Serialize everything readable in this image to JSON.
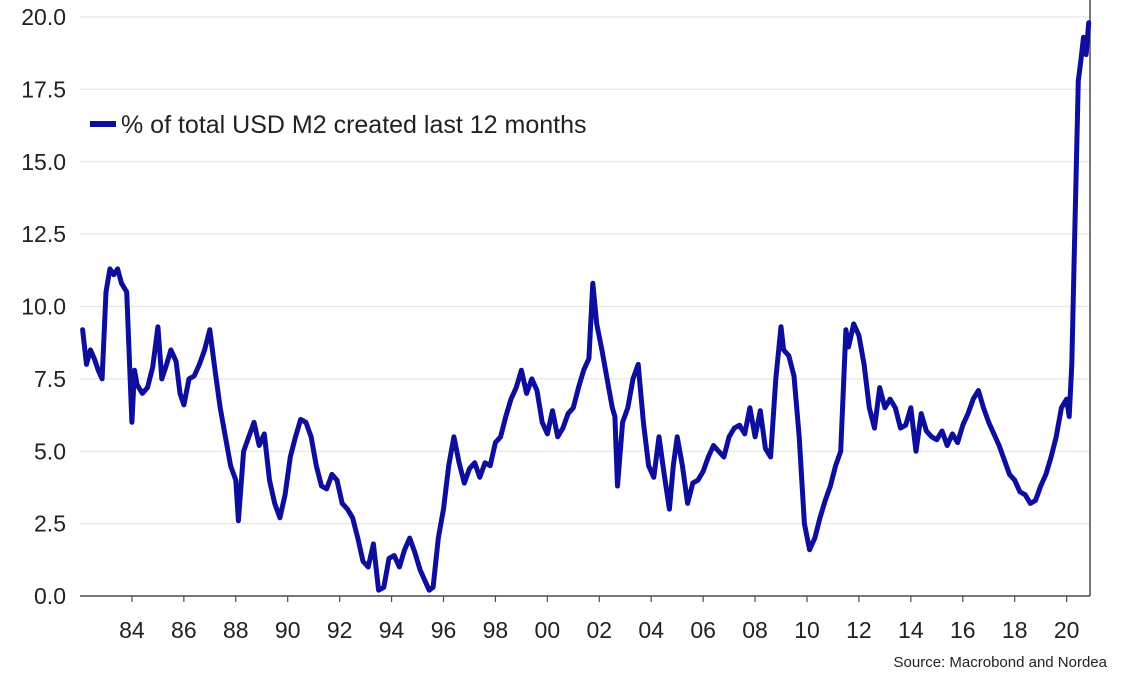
{
  "chart_data": {
    "type": "line",
    "title": "",
    "xlabel": "",
    "ylabel": "",
    "xlim": [
      1982.0,
      2020.9
    ],
    "ylim": [
      0,
      20
    ],
    "x_tick_values": [
      1984,
      1986,
      1988,
      1990,
      1992,
      1994,
      1996,
      1998,
      2000,
      2002,
      2004,
      2006,
      2008,
      2010,
      2012,
      2014,
      2016,
      2018,
      2020
    ],
    "x_tick_labels": [
      "84",
      "86",
      "88",
      "90",
      "92",
      "94",
      "96",
      "98",
      "00",
      "02",
      "04",
      "06",
      "08",
      "10",
      "12",
      "14",
      "16",
      "18",
      "20"
    ],
    "y_tick_values": [
      0,
      2.5,
      5,
      7.5,
      10,
      12.5,
      15,
      17.5,
      20
    ],
    "y_tick_labels": [
      "0.0",
      "2.5",
      "5.0",
      "7.5",
      "10.0",
      "12.5",
      "15.0",
      "17.5",
      "20.0"
    ],
    "grid": "horizontal",
    "legend_position": "top-left",
    "series": [
      {
        "name": "% of total USD M2 created last 12 months",
        "color": "#0d0d9e",
        "x": [
          1982.1,
          1982.25,
          1982.4,
          1982.55,
          1982.7,
          1982.85,
          1983.0,
          1983.15,
          1983.3,
          1983.45,
          1983.6,
          1983.8,
          1984.0,
          1984.1,
          1984.2,
          1984.4,
          1984.6,
          1984.8,
          1985.0,
          1985.15,
          1985.3,
          1985.5,
          1985.7,
          1985.85,
          1986.0,
          1986.2,
          1986.4,
          1986.6,
          1986.8,
          1987.0,
          1987.2,
          1987.4,
          1987.6,
          1987.8,
          1988.0,
          1988.1,
          1988.3,
          1988.5,
          1988.7,
          1988.9,
          1989.1,
          1989.3,
          1989.5,
          1989.7,
          1989.9,
          1990.1,
          1990.3,
          1990.5,
          1990.7,
          1990.9,
          1991.1,
          1991.3,
          1991.5,
          1991.7,
          1991.9,
          1992.1,
          1992.3,
          1992.5,
          1992.7,
          1992.9,
          1993.1,
          1993.3,
          1993.5,
          1993.7,
          1993.9,
          1994.1,
          1994.3,
          1994.5,
          1994.7,
          1994.9,
          1995.1,
          1995.3,
          1995.45,
          1995.6,
          1995.8,
          1996.0,
          1996.2,
          1996.4,
          1996.6,
          1996.8,
          1997.0,
          1997.2,
          1997.4,
          1997.6,
          1997.8,
          1998.0,
          1998.2,
          1998.4,
          1998.6,
          1998.8,
          1999.0,
          1999.2,
          1999.4,
          1999.6,
          1999.8,
          2000.0,
          2000.2,
          2000.4,
          2000.6,
          2000.8,
          2001.0,
          2001.2,
          2001.4,
          2001.6,
          2001.75,
          2001.9,
          2002.1,
          2002.3,
          2002.5,
          2002.6,
          2002.7,
          2002.9,
          2003.1,
          2003.3,
          2003.5,
          2003.7,
          2003.9,
          2004.1,
          2004.3,
          2004.5,
          2004.7,
          2004.85,
          2005.0,
          2005.2,
          2005.4,
          2005.6,
          2005.8,
          2006.0,
          2006.2,
          2006.4,
          2006.6,
          2006.8,
          2007.0,
          2007.2,
          2007.4,
          2007.6,
          2007.8,
          2008.0,
          2008.2,
          2008.4,
          2008.6,
          2008.8,
          2009.0,
          2009.1,
          2009.3,
          2009.5,
          2009.7,
          2009.9,
          2010.1,
          2010.3,
          2010.5,
          2010.7,
          2010.9,
          2011.1,
          2011.3,
          2011.5,
          2011.6,
          2011.8,
          2012.0,
          2012.2,
          2012.4,
          2012.6,
          2012.8,
          2013.0,
          2013.2,
          2013.4,
          2013.6,
          2013.8,
          2014.0,
          2014.2,
          2014.4,
          2014.6,
          2014.8,
          2015.0,
          2015.2,
          2015.4,
          2015.6,
          2015.8,
          2016.0,
          2016.2,
          2016.4,
          2016.6,
          2016.8,
          2017.0,
          2017.2,
          2017.4,
          2017.6,
          2017.8,
          2018.0,
          2018.2,
          2018.4,
          2018.6,
          2018.8,
          2019.0,
          2019.2,
          2019.4,
          2019.6,
          2019.8,
          2020.0,
          2020.1,
          2020.2,
          2020.3,
          2020.45,
          2020.55,
          2020.65,
          2020.75,
          2020.85
        ],
        "values": [
          9.2,
          8.0,
          8.5,
          8.2,
          7.8,
          7.5,
          10.5,
          11.3,
          11.1,
          11.3,
          10.8,
          10.5,
          6.0,
          7.8,
          7.3,
          7.0,
          7.2,
          7.9,
          9.3,
          7.5,
          7.9,
          8.5,
          8.1,
          7.0,
          6.6,
          7.5,
          7.6,
          8.0,
          8.5,
          9.2,
          7.8,
          6.5,
          5.5,
          4.5,
          4.0,
          2.6,
          5.0,
          5.5,
          6.0,
          5.2,
          5.6,
          4.0,
          3.2,
          2.7,
          3.5,
          4.8,
          5.5,
          6.1,
          6.0,
          5.5,
          4.5,
          3.8,
          3.7,
          4.2,
          4.0,
          3.2,
          3.0,
          2.7,
          2.0,
          1.2,
          1.0,
          1.8,
          0.2,
          0.3,
          1.3,
          1.4,
          1.0,
          1.6,
          2.0,
          1.5,
          0.9,
          0.5,
          0.2,
          0.3,
          2.0,
          3.0,
          4.5,
          5.5,
          4.6,
          3.9,
          4.4,
          4.6,
          4.1,
          4.6,
          4.5,
          5.3,
          5.5,
          6.2,
          6.8,
          7.2,
          7.8,
          7.0,
          7.5,
          7.1,
          6.0,
          5.6,
          6.4,
          5.5,
          5.8,
          6.3,
          6.5,
          7.2,
          7.8,
          8.2,
          10.8,
          9.4,
          8.5,
          7.5,
          6.5,
          6.2,
          3.8,
          6.0,
          6.5,
          7.5,
          8.0,
          6.0,
          4.5,
          4.1,
          5.5,
          4.2,
          3.0,
          4.5,
          5.5,
          4.5,
          3.2,
          3.9,
          4.0,
          4.3,
          4.8,
          5.2,
          5.0,
          4.8,
          5.5,
          5.8,
          5.9,
          5.6,
          6.5,
          5.5,
          6.4,
          5.1,
          4.8,
          7.5,
          9.3,
          8.5,
          8.3,
          7.6,
          5.5,
          2.5,
          1.6,
          2.0,
          2.7,
          3.3,
          3.8,
          4.5,
          5.0,
          9.2,
          8.6,
          9.4,
          9.0,
          8.0,
          6.5,
          5.8,
          7.2,
          6.5,
          6.8,
          6.5,
          5.8,
          5.9,
          6.5,
          5.0,
          6.3,
          5.7,
          5.5,
          5.4,
          5.7,
          5.2,
          5.6,
          5.3,
          5.9,
          6.3,
          6.8,
          7.1,
          6.5,
          6.0,
          5.6,
          5.2,
          4.7,
          4.2,
          4.0,
          3.6,
          3.5,
          3.2,
          3.3,
          3.8,
          4.2,
          4.8,
          5.5,
          6.5,
          6.8,
          6.2,
          8.0,
          12.0,
          17.8,
          18.5,
          19.3,
          18.7,
          19.8
        ]
      }
    ],
    "source_note": "Source: Macrobond and Nordea"
  }
}
